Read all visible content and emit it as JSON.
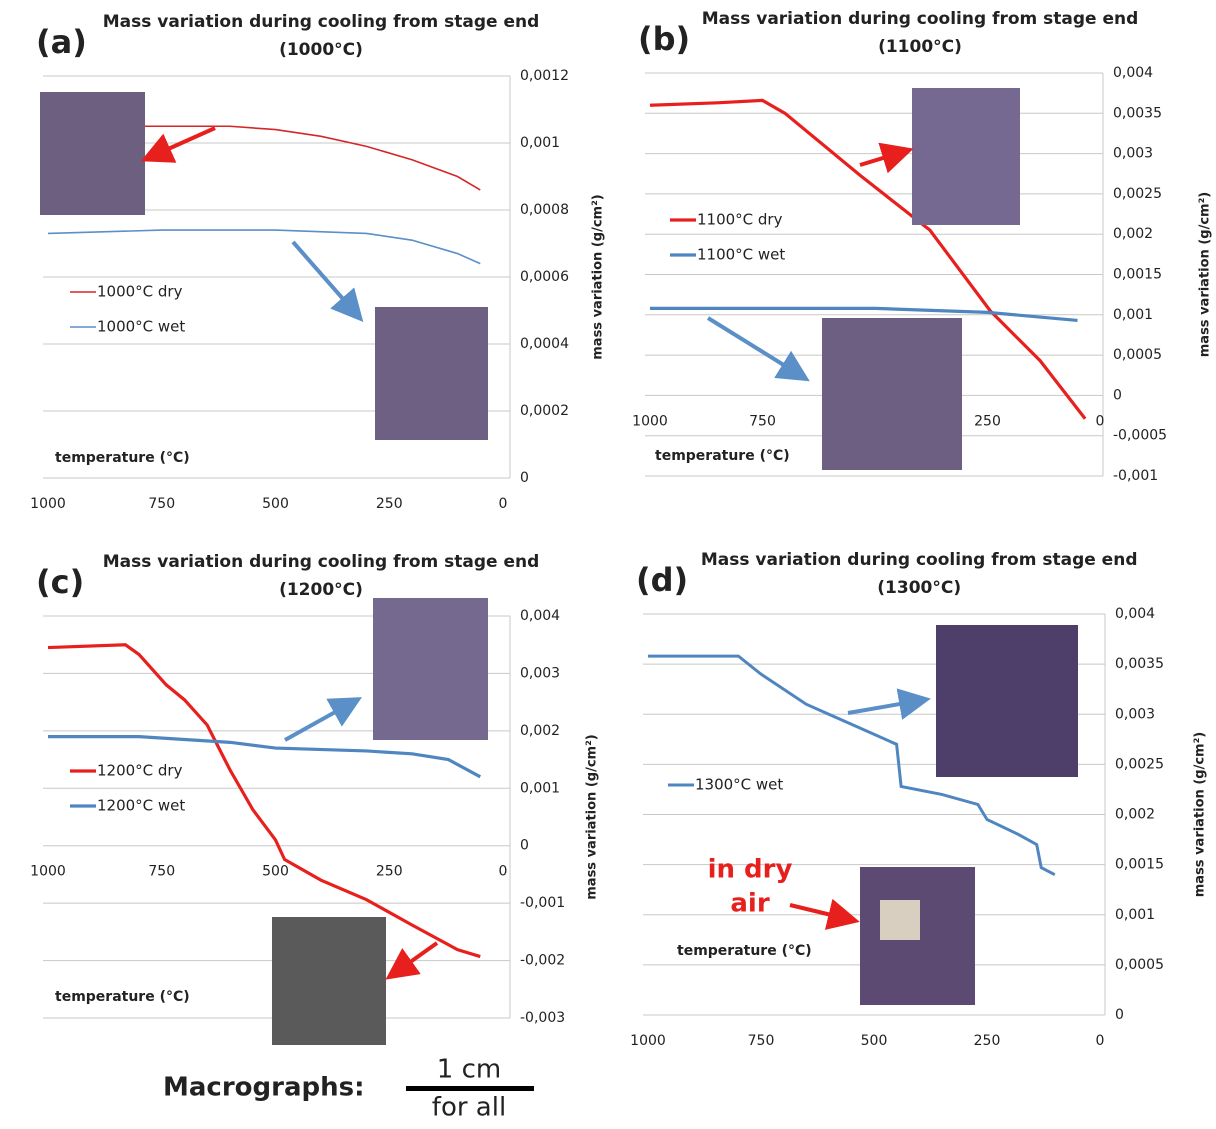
{
  "chart_data": [
    {
      "type": "line",
      "panel": "(a)",
      "title": "Mass variation during cooling from stage end",
      "subtitle": "(1000°C)",
      "xlabel": "temperature (°C)",
      "ylabel": "mass variation (g/cm²)",
      "xlim": [
        1000,
        0
      ],
      "xticks": [
        1000,
        750,
        500,
        250,
        0
      ],
      "ylim": [
        0,
        0.0012
      ],
      "yticks": [
        0,
        {
          "value": 0.0002,
          "label": "0,0002"
        },
        {
          "value": 0.0004,
          "label": "0,0004"
        },
        {
          "value": 0.0006,
          "label": "0,0006"
        },
        {
          "value": 0.0008,
          "label": "0,0008"
        },
        {
          "value": 0.001,
          "label": "0,001"
        },
        {
          "value": 0.0012,
          "label": "0,0012"
        }
      ],
      "grid": true,
      "series": [
        {
          "name": "1000°C dry",
          "color": "#d62728",
          "x": [
            1000,
            750,
            600,
            500,
            400,
            300,
            200,
            100,
            50
          ],
          "values": [
            0.00105,
            0.00105,
            0.00105,
            0.00104,
            0.00102,
            0.00099,
            0.00095,
            0.0009,
            0.00086
          ]
        },
        {
          "name": "1000°C wet",
          "color": "#5b8fc7",
          "x": [
            1000,
            750,
            500,
            300,
            200,
            100,
            50
          ],
          "values": [
            0.00073,
            0.00074,
            0.00074,
            0.00073,
            0.00071,
            0.00067,
            0.00064
          ]
        }
      ]
    },
    {
      "type": "line",
      "panel": "(b)",
      "title": "Mass variation during cooling from stage end",
      "subtitle": "(1100°C)",
      "xlabel": "temperature (°C)",
      "ylabel": "mass variation (g/cm²)",
      "xlim": [
        1000,
        0
      ],
      "xticks": [
        1000,
        750,
        500,
        250,
        0
      ],
      "ylim": [
        -0.001,
        0.004
      ],
      "yticks": [
        {
          "value": -0.001,
          "label": "-0,001"
        },
        {
          "value": -0.0005,
          "label": "-0,0005"
        },
        0,
        {
          "value": 0.0005,
          "label": "0,0005"
        },
        {
          "value": 0.001,
          "label": "0,001"
        },
        {
          "value": 0.0015,
          "label": "0,0015"
        },
        {
          "value": 0.002,
          "label": "0,002"
        },
        {
          "value": 0.0025,
          "label": "0,0025"
        },
        {
          "value": 0.003,
          "label": "0,003"
        },
        {
          "value": 0.0035,
          "label": "0,0035"
        },
        {
          "value": 0.004,
          "label": "0,004"
        }
      ],
      "grid": true,
      "series": [
        {
          "name": "1100°C dry",
          "color": "#e8201d",
          "x": [
            1000,
            850,
            750,
            700,
            533,
            378,
            244,
            133,
            33
          ],
          "values": [
            0.0036,
            0.00363,
            0.00366,
            0.0035,
            0.00273,
            0.00205,
            0.00105,
            0.00043,
            -0.00029
          ]
        },
        {
          "name": "1100°C wet",
          "color": "#4f86c0",
          "x": [
            1000,
            500,
            250,
            50
          ],
          "values": [
            0.00108,
            0.00108,
            0.00103,
            0.00093
          ]
        }
      ]
    },
    {
      "type": "line",
      "panel": "(c)",
      "title": "Mass variation during cooling from stage end",
      "subtitle": "(1200°C)",
      "xlabel": "temperature (°C)",
      "ylabel": "mass variation (g/cm²)",
      "xlim": [
        1000,
        0
      ],
      "xticks": [
        1000,
        750,
        500,
        250,
        0
      ],
      "ylim": [
        -0.003,
        0.004
      ],
      "yticks": [
        {
          "value": -0.003,
          "label": "-0,003"
        },
        {
          "value": -0.002,
          "label": "-0,002"
        },
        {
          "value": -0.001,
          "label": "-0,001"
        },
        0,
        {
          "value": 0.001,
          "label": "0,001"
        },
        {
          "value": 0.002,
          "label": "0,002"
        },
        {
          "value": 0.003,
          "label": "0,003"
        },
        {
          "value": 0.004,
          "label": "0,004"
        }
      ],
      "grid": true,
      "series": [
        {
          "name": "1200°C dry",
          "color": "#e8201d",
          "x": [
            1000,
            830,
            800,
            740,
            700,
            650,
            600,
            550,
            500,
            480,
            400,
            300,
            200,
            100,
            50
          ],
          "values": [
            0.00345,
            0.0035,
            0.00333,
            0.0028,
            0.00254,
            0.0021,
            0.00132,
            0.00063,
            0.0001,
            -0.00024,
            -0.0006,
            -0.00094,
            -0.00138,
            -0.00181,
            -0.00193
          ]
        },
        {
          "name": "1200°C wet",
          "color": "#4f86c0",
          "x": [
            1000,
            800,
            700,
            600,
            500,
            300,
            200,
            120,
            50
          ],
          "values": [
            0.0019,
            0.0019,
            0.00185,
            0.0018,
            0.0017,
            0.00165,
            0.0016,
            0.0015,
            0.0012
          ]
        }
      ]
    },
    {
      "type": "line",
      "panel": "(d)",
      "title": "Mass variation during cooling from stage end",
      "subtitle": "(1300°C)",
      "xlabel": "temperature (°C)",
      "ylabel": "mass variation (g/cm²)",
      "xlim": [
        1000,
        0
      ],
      "xticks": [
        1000,
        750,
        500,
        250,
        0
      ],
      "ylim": [
        0,
        0.004
      ],
      "yticks": [
        0,
        {
          "value": 0.0005,
          "label": "0,0005"
        },
        {
          "value": 0.001,
          "label": "0,001"
        },
        {
          "value": 0.0015,
          "label": "0,0015"
        },
        {
          "value": 0.002,
          "label": "0,002"
        },
        {
          "value": 0.0025,
          "label": "0,0025"
        },
        {
          "value": 0.003,
          "label": "0,003"
        },
        {
          "value": 0.0035,
          "label": "0,0035"
        },
        {
          "value": 0.004,
          "label": "0,004"
        }
      ],
      "grid": true,
      "annotations": [
        "in dry",
        "air"
      ],
      "series": [
        {
          "name": "1300°C wet",
          "color": "#4f86c0",
          "x": [
            1000,
            800,
            750,
            650,
            600,
            550,
            450,
            440,
            350,
            270,
            250,
            180,
            140,
            130,
            100
          ],
          "values": [
            0.00358,
            0.00358,
            0.0034,
            0.0031,
            0.003,
            0.0029,
            0.0027,
            0.00228,
            0.0022,
            0.0021,
            0.00195,
            0.0018,
            0.0017,
            0.00147,
            0.0014
          ]
        }
      ]
    }
  ],
  "footer": {
    "label": "Macrographs:",
    "scale": "1 cm",
    "note": "for all"
  }
}
